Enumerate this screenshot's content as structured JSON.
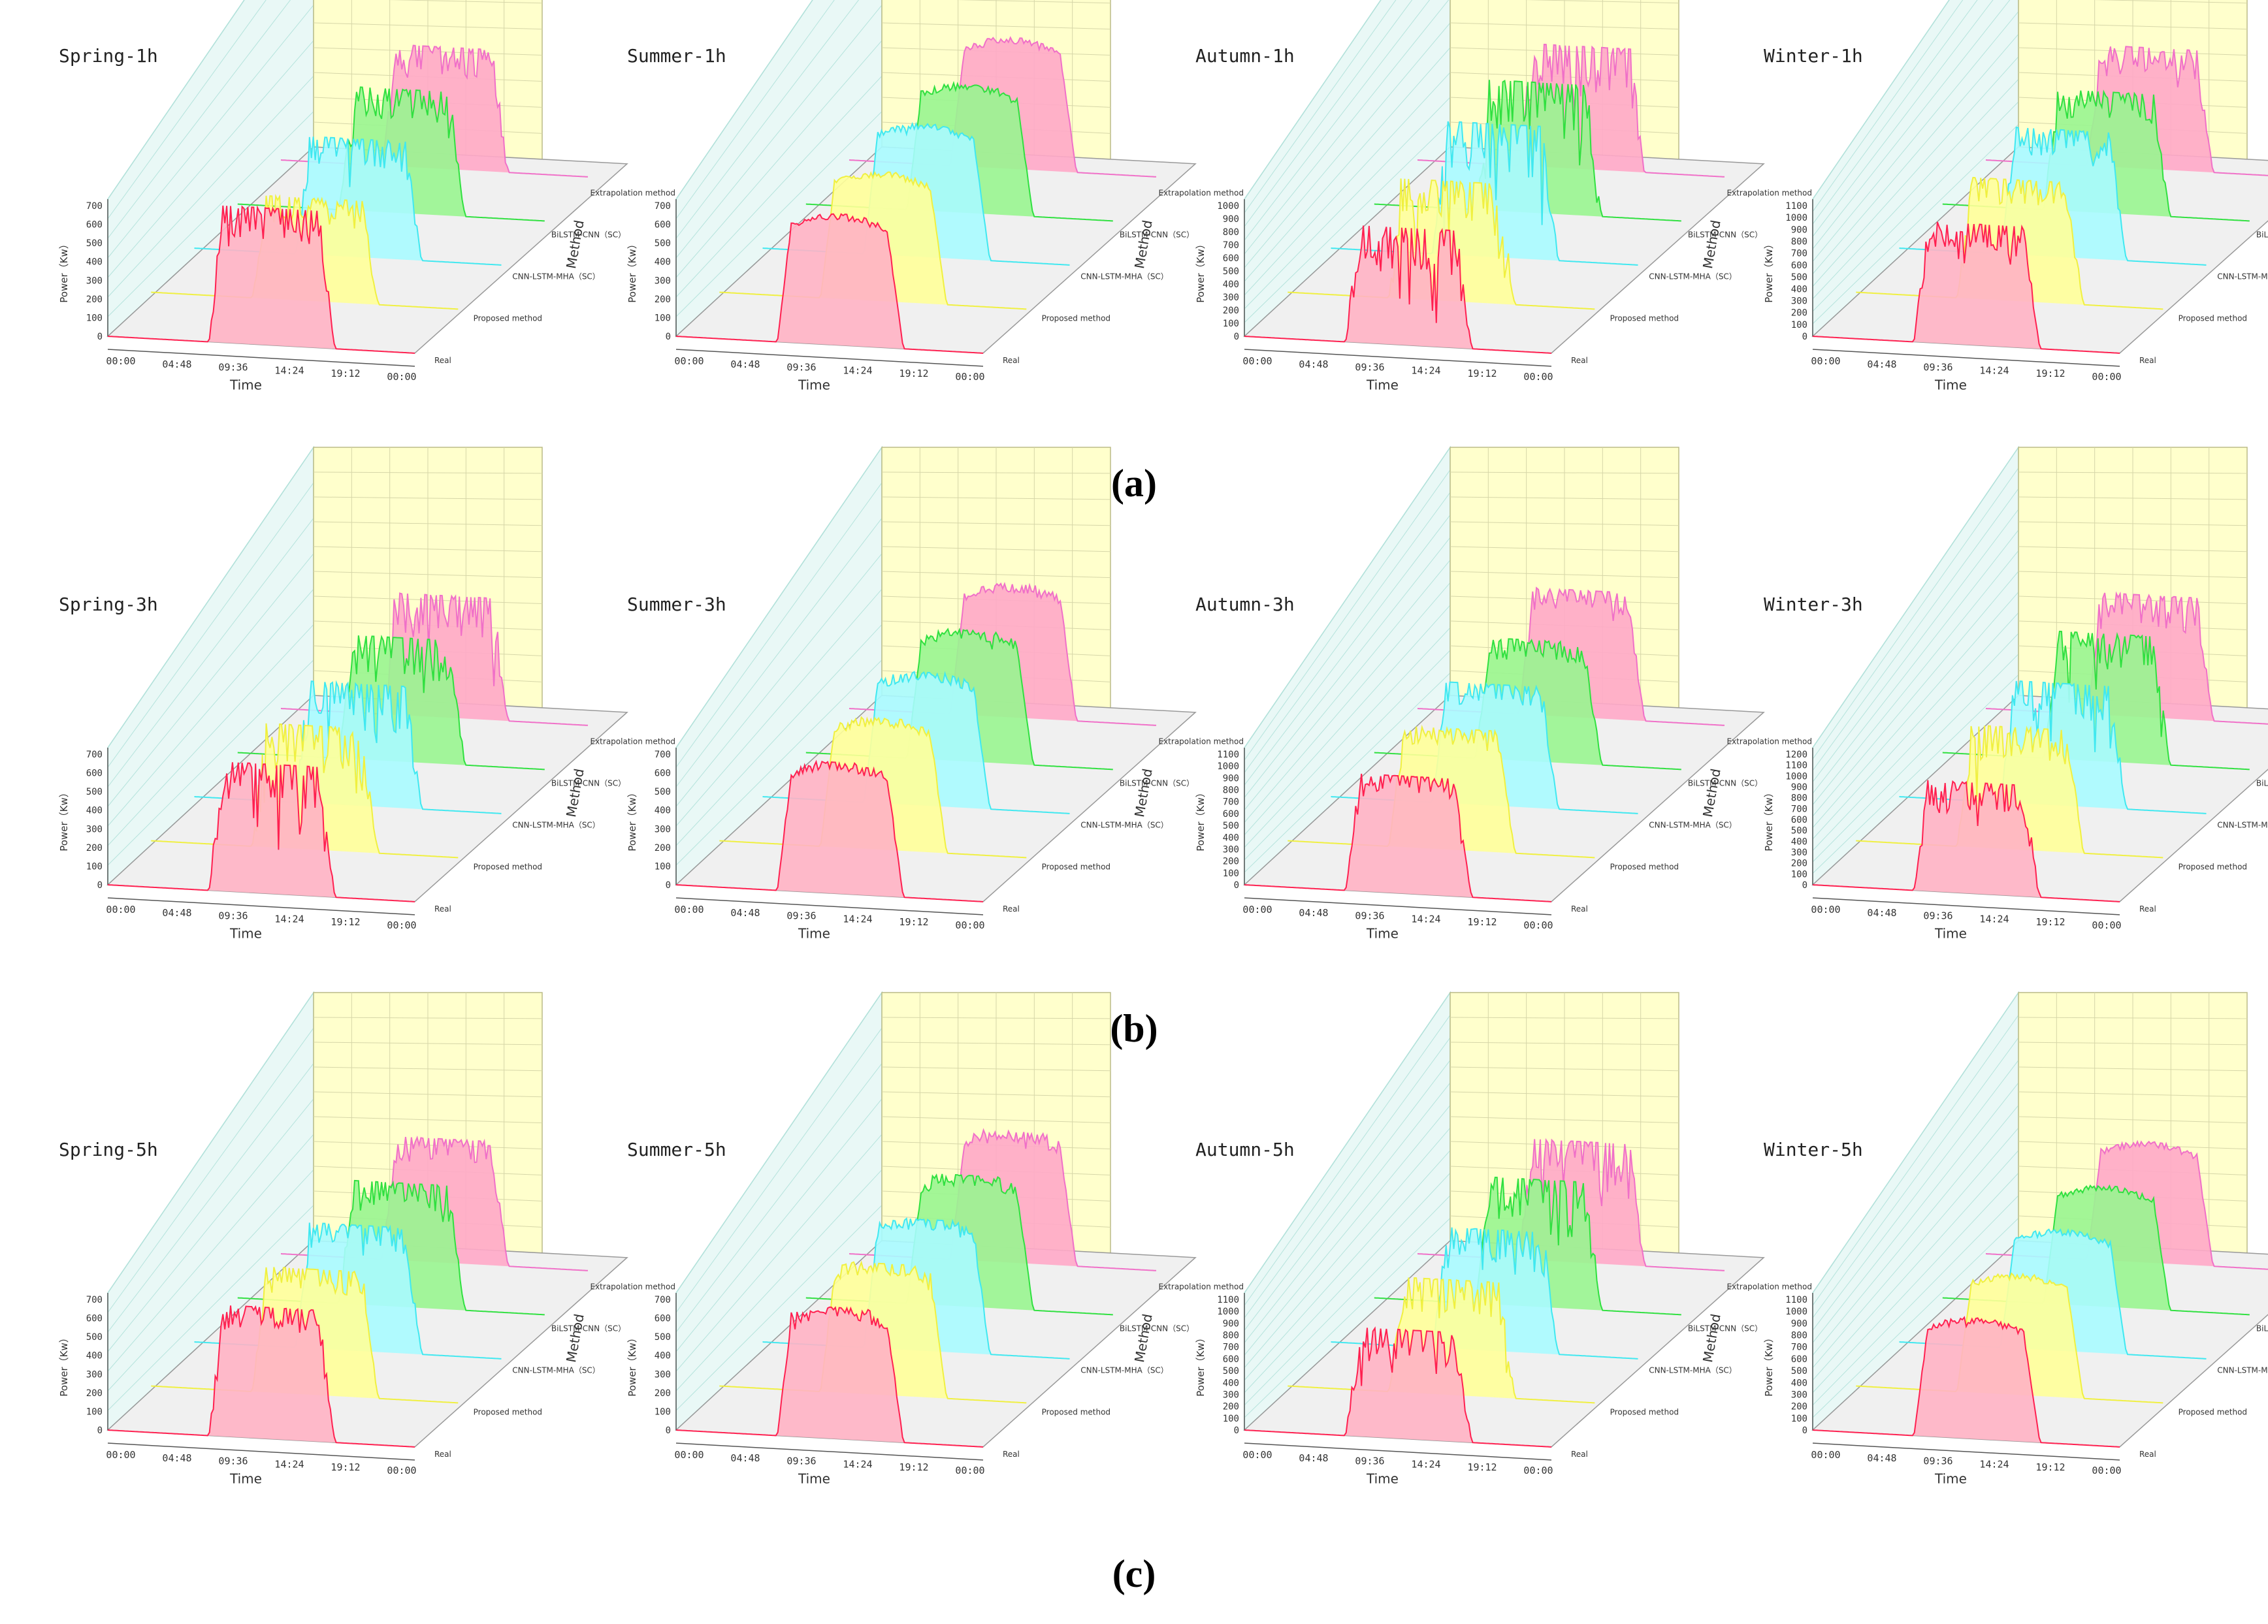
{
  "figure": {
    "row_labels": [
      "(a)",
      "(b)",
      "(c)"
    ],
    "axis_labels": {
      "x": "Time",
      "y": "Power（Kw）",
      "z": "Method"
    },
    "time_ticks": [
      "00:00",
      "04:48",
      "09:36",
      "14:24",
      "19:12",
      "00:00"
    ],
    "methods": [
      "Real",
      "Proposed method",
      "CNN-LSTM-MHA（SC）",
      "BiLSTM-CNN（SC）",
      "Extrapolation method"
    ],
    "series_colors": {
      "Real": "#ff2050",
      "Proposed method": "#f0f040",
      "CNN-LSTM-MHA（SC）": "#40e8f0",
      "BiLSTM-CNN（SC）": "#30e040",
      "Extrapolation method": "#f070c8"
    },
    "fill_colors": {
      "Real": "#ffb3c4",
      "Proposed method": "#ffff99",
      "CNN-LSTM-MHA（SC）": "#a8fbff",
      "BiLSTM-CNN（SC）": "#99f590",
      "Extrapolation method": "#ffa8c8"
    }
  },
  "chart_data": [
    {
      "type": "area3d",
      "title": "Spring-1h",
      "row": 0,
      "col": 0,
      "ylim": [
        0,
        700
      ],
      "yticks": [
        0,
        100,
        200,
        300,
        400,
        500,
        600,
        700
      ],
      "xlabel": "Time",
      "ylabel": "Power（Kw）",
      "zlabel": "Method",
      "peaks": {
        "Real": 720,
        "Proposed method": 540,
        "CNN-LSTM-MHA（SC）": 620,
        "BiLSTM-CNN（SC）": 650,
        "Extrapolation method": 640
      },
      "noise": 0.35
    },
    {
      "type": "area3d",
      "title": "Summer-1h",
      "row": 0,
      "col": 1,
      "ylim": [
        0,
        700
      ],
      "yticks": [
        0,
        100,
        200,
        300,
        400,
        500,
        600,
        700
      ],
      "xlabel": "Time",
      "ylabel": "Power（Kw）",
      "zlabel": "Method",
      "peaks": {
        "Real": 690,
        "Proposed method": 680,
        "CNN-LSTM-MHA（SC）": 700,
        "BiLSTM-CNN（SC）": 680,
        "Extrapolation method": 690
      },
      "noise": 0.05
    },
    {
      "type": "area3d",
      "title": "Autumn-1h",
      "row": 0,
      "col": 2,
      "ylim": [
        0,
        1000
      ],
      "yticks": [
        0,
        100,
        200,
        300,
        400,
        500,
        600,
        700,
        800,
        900,
        1000
      ],
      "xlabel": "Time",
      "ylabel": "Power（Kw）",
      "zlabel": "Method",
      "peaks": {
        "Real": 880,
        "Proposed method": 900,
        "CNN-LSTM-MHA（SC）": 1000,
        "BiLSTM-CNN（SC）": 980,
        "Extrapolation method": 920
      },
      "noise": 0.6
    },
    {
      "type": "area3d",
      "title": "Winter-1h",
      "row": 0,
      "col": 3,
      "ylim": [
        0,
        1100
      ],
      "yticks": [
        0,
        100,
        200,
        300,
        400,
        500,
        600,
        700,
        800,
        900,
        1000,
        1100
      ],
      "xlabel": "Time",
      "ylabel": "Power（Kw）",
      "zlabel": "Method",
      "peaks": {
        "Real": 1000,
        "Proposed method": 1000,
        "CNN-LSTM-MHA（SC）": 1050,
        "BiLSTM-CNN（SC）": 1000,
        "Extrapolation method": 1000
      },
      "noise": 0.3
    },
    {
      "type": "area3d",
      "title": "Spring-3h",
      "row": 1,
      "col": 0,
      "ylim": [
        0,
        700
      ],
      "yticks": [
        0,
        100,
        200,
        300,
        400,
        500,
        600,
        700
      ],
      "xlabel": "Time",
      "ylabel": "Power（Kw）",
      "zlabel": "Method",
      "peaks": {
        "Real": 680,
        "Proposed method": 650,
        "CNN-LSTM-MHA（SC）": 640,
        "BiLSTM-CNN（SC）": 650,
        "Extrapolation method": 640
      },
      "noise": 0.5
    },
    {
      "type": "area3d",
      "title": "Summer-3h",
      "row": 1,
      "col": 1,
      "ylim": [
        0,
        700
      ],
      "yticks": [
        0,
        100,
        200,
        300,
        400,
        500,
        600,
        700
      ],
      "xlabel": "Time",
      "ylabel": "Power（Kw）",
      "zlabel": "Method",
      "peaks": {
        "Real": 690,
        "Proposed method": 690,
        "CNN-LSTM-MHA（SC）": 700,
        "BiLSTM-CNN（SC）": 690,
        "Extrapolation method": 700
      },
      "noise": 0.08
    },
    {
      "type": "area3d",
      "title": "Autumn-3h",
      "row": 1,
      "col": 2,
      "ylim": [
        0,
        1100
      ],
      "yticks": [
        0,
        100,
        200,
        300,
        400,
        500,
        600,
        700,
        800,
        900,
        1000,
        1100
      ],
      "xlabel": "Time",
      "ylabel": "Power（Kw）",
      "zlabel": "Method",
      "peaks": {
        "Real": 970,
        "Proposed method": 1000,
        "CNN-LSTM-MHA（SC）": 1000,
        "BiLSTM-CNN（SC）": 1000,
        "Extrapolation method": 1050
      },
      "noise": 0.2
    },
    {
      "type": "area3d",
      "title": "Winter-3h",
      "row": 1,
      "col": 3,
      "ylim": [
        0,
        1200
      ],
      "yticks": [
        0,
        100,
        200,
        300,
        400,
        500,
        600,
        700,
        800,
        900,
        1000,
        1100,
        1200
      ],
      "xlabel": "Time",
      "ylabel": "Power（Kw）",
      "zlabel": "Method",
      "peaks": {
        "Real": 1000,
        "Proposed method": 1100,
        "CNN-LSTM-MHA（SC）": 1100,
        "BiLSTM-CNN（SC）": 1150,
        "Extrapolation method": 1100
      },
      "noise": 0.4
    },
    {
      "type": "area3d",
      "title": "Spring-5h",
      "row": 2,
      "col": 0,
      "ylim": [
        0,
        700
      ],
      "yticks": [
        0,
        100,
        200,
        300,
        400,
        500,
        600,
        700
      ],
      "xlabel": "Time",
      "ylabel": "Power（Kw）",
      "zlabel": "Method",
      "peaks": {
        "Real": 690,
        "Proposed method": 660,
        "CNN-LSTM-MHA（SC）": 660,
        "BiLSTM-CNN（SC）": 650,
        "Extrapolation method": 650
      },
      "noise": 0.25
    },
    {
      "type": "area3d",
      "title": "Summer-5h",
      "row": 2,
      "col": 1,
      "ylim": [
        0,
        700
      ],
      "yticks": [
        0,
        100,
        200,
        300,
        400,
        500,
        600,
        700
      ],
      "xlabel": "Time",
      "ylabel": "Power（Kw）",
      "zlabel": "Method",
      "peaks": {
        "Real": 690,
        "Proposed method": 690,
        "CNN-LSTM-MHA（SC）": 690,
        "BiLSTM-CNN（SC）": 690,
        "Extrapolation method": 690
      },
      "noise": 0.1
    },
    {
      "type": "area3d",
      "title": "Autumn-5h",
      "row": 2,
      "col": 2,
      "ylim": [
        0,
        1100
      ],
      "yticks": [
        0,
        100,
        200,
        300,
        400,
        500,
        600,
        700,
        800,
        900,
        1000,
        1100
      ],
      "xlabel": "Time",
      "ylabel": "Power（Kw）",
      "zlabel": "Method",
      "peaks": {
        "Real": 900,
        "Proposed method": 950,
        "CNN-LSTM-MHA（SC）": 1000,
        "BiLSTM-CNN（SC）": 1050,
        "Extrapolation method": 1000
      },
      "noise": 0.45
    },
    {
      "type": "area3d",
      "title": "Winter-5h",
      "row": 2,
      "col": 3,
      "ylim": [
        0,
        1100
      ],
      "yticks": [
        0,
        100,
        200,
        300,
        400,
        500,
        600,
        700,
        800,
        900,
        1000,
        1100
      ],
      "xlabel": "Time",
      "ylabel": "Power（Kw）",
      "zlabel": "Method",
      "peaks": {
        "Real": 1000,
        "Proposed method": 1000,
        "CNN-LSTM-MHA（SC）": 1000,
        "BiLSTM-CNN（SC）": 1000,
        "Extrapolation method": 1000
      },
      "noise": 0.05
    }
  ]
}
